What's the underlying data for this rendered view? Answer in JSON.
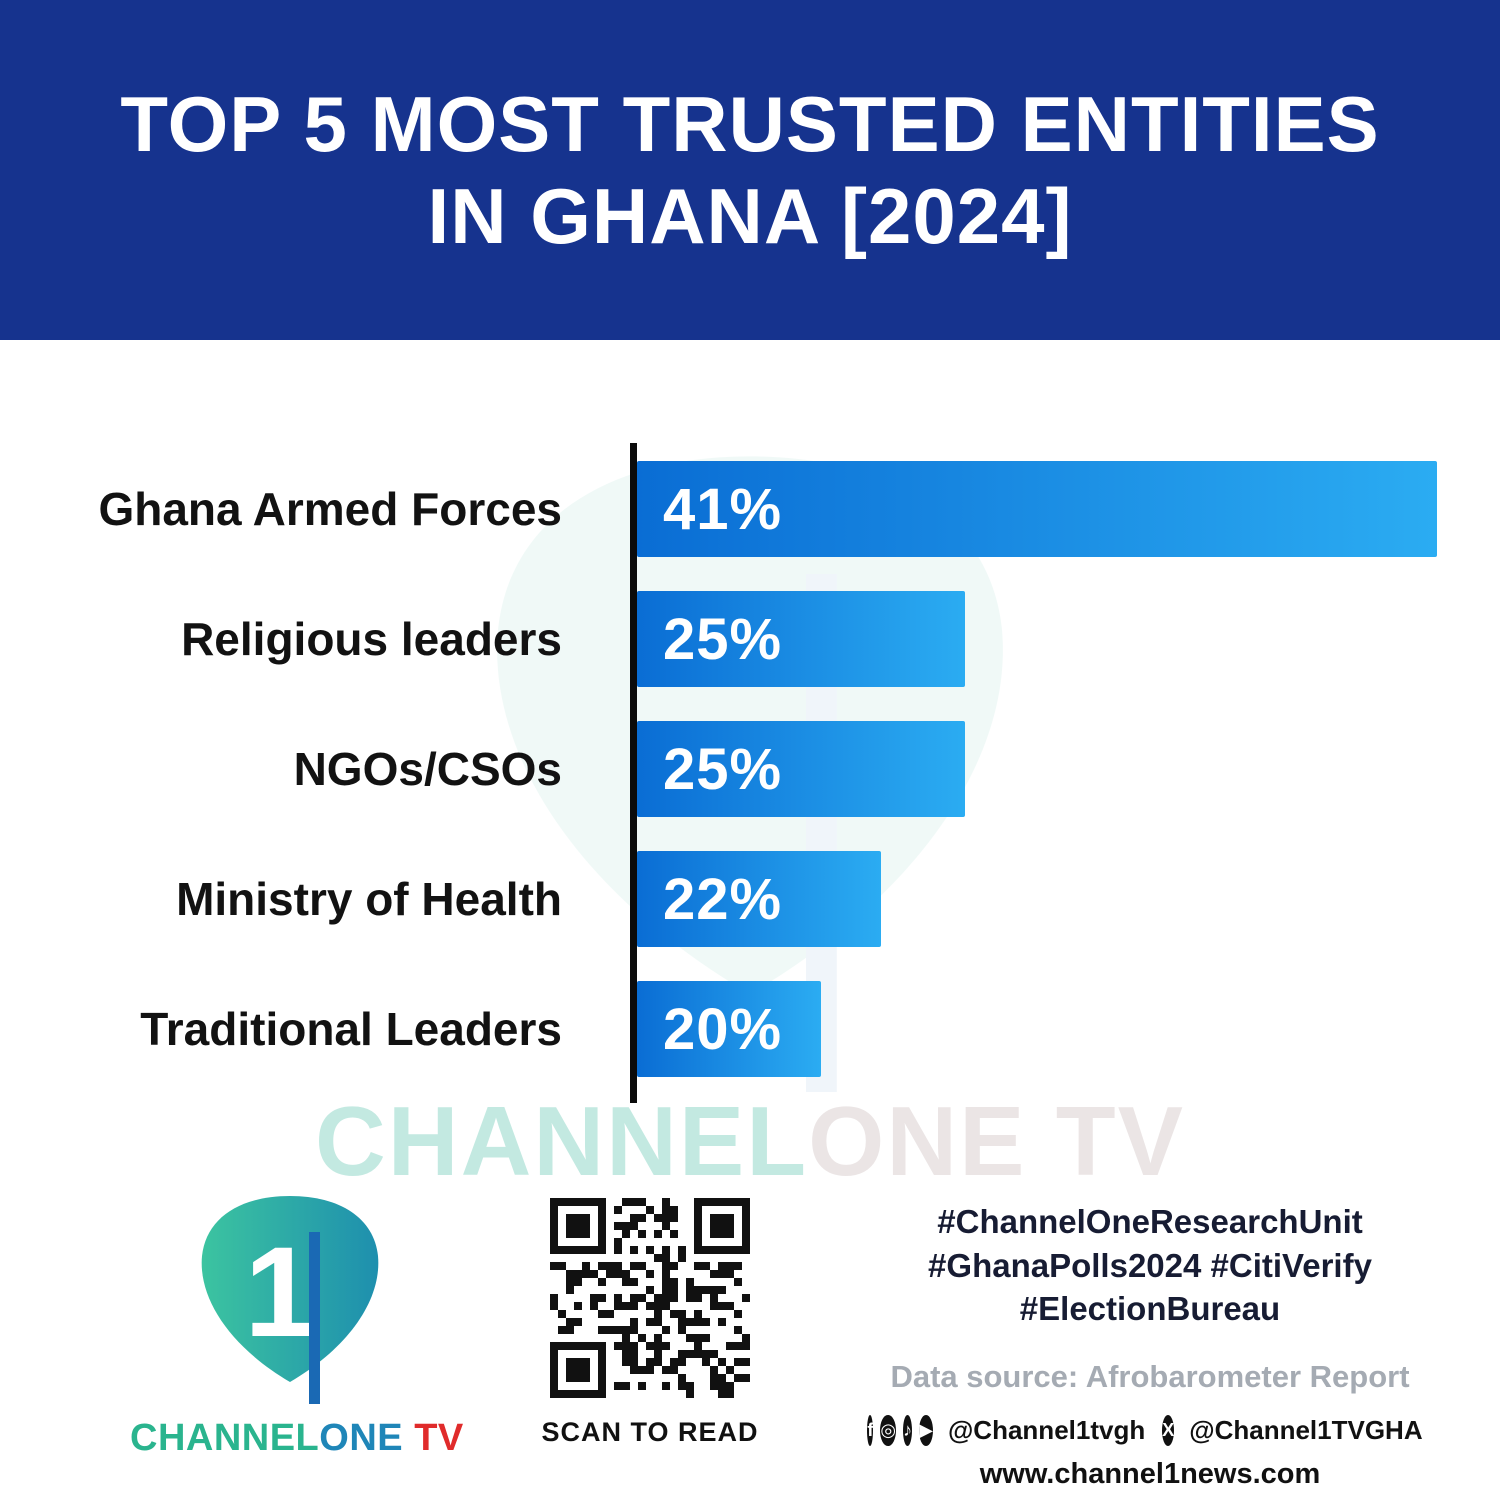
{
  "header": {
    "title_line1": "TOP 5 MOST TRUSTED ENTITIES",
    "title_line2": "IN GHANA [2024]",
    "bg_color": "#16338e"
  },
  "chart_data": {
    "type": "bar",
    "orientation": "horizontal",
    "title": "Top 5 Most Trusted Entities in Ghana [2024]",
    "categories": [
      "Ghana Armed Forces",
      "Religious leaders",
      "NGOs/CSOs",
      "Ministry of Health",
      "Traditional Leaders"
    ],
    "values": [
      41,
      25,
      25,
      22,
      20
    ],
    "value_labels": [
      "41%",
      "25%",
      "25%",
      "22%",
      "20%"
    ],
    "xlabel": "",
    "ylabel": "",
    "xlim": [
      0,
      41
    ],
    "grid": false,
    "legend": false,
    "bar_gradient": [
      "#0a6dd4",
      "#2bacf2"
    ],
    "axis_color": "#0b0b0b",
    "display_widths_pct": [
      100,
      41,
      41,
      30.5,
      23
    ]
  },
  "watermark": {
    "part1": "CHANNEL",
    "part2": "ONE TV"
  },
  "footer": {
    "logo": {
      "one_glyph": "1",
      "brand_part1": "CHANNEL",
      "brand_part2": "ONE",
      "brand_part3": " TV",
      "teal": "#2ab48e",
      "blue": "#1f86b8",
      "red": "#e02b2b"
    },
    "qr_caption": "SCAN TO READ",
    "hashtags_line1": "#ChannelOneResearchUnit",
    "hashtags_line2": "#GhanaPolls2024 #CitiVerify",
    "hashtags_line3": "#ElectionBureau",
    "data_source": "Data source: Afrobarometer Report",
    "social_handle1": "@Channel1tvgh",
    "social_handle2": "@Channel1TVGHA",
    "website": "www.channel1news.com",
    "icons": {
      "facebook": "f",
      "instagram": "◎",
      "tiktok": "♪",
      "youtube": "▶",
      "x": "X"
    }
  }
}
